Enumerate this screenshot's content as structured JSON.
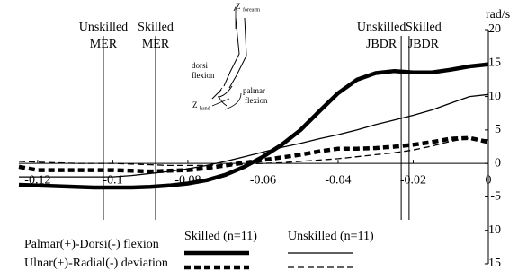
{
  "chart_data": {
    "type": "line",
    "y_unit_label": "rad/s",
    "x": [
      -0.125,
      -0.12,
      -0.115,
      -0.11,
      -0.105,
      -0.1,
      -0.095,
      -0.09,
      -0.085,
      -0.08,
      -0.075,
      -0.07,
      -0.065,
      -0.06,
      -0.055,
      -0.05,
      -0.045,
      -0.04,
      -0.035,
      -0.03,
      -0.025,
      -0.02,
      -0.015,
      -0.01,
      -0.005,
      0
    ],
    "xlim": [
      -0.125,
      0
    ],
    "xticks": [
      -0.12,
      -0.1,
      -0.08,
      -0.06,
      -0.04,
      -0.02,
      0
    ],
    "ylim": [
      -15,
      20
    ],
    "yticks": [
      -15,
      -10,
      -5,
      0,
      5,
      10,
      15,
      20
    ],
    "measures": [
      {
        "name": "Palmar(+)-Dorsi(-) flexion",
        "dash": "none"
      },
      {
        "name": "Ulnar(+)-Radial(-) deviation",
        "dash": "7 4"
      }
    ],
    "series": [
      {
        "name": "Skilled (n=11)",
        "color": "#000000",
        "stroke_width": 4.5,
        "values": [
          [
            -3.2,
            -3.3,
            -3.4,
            -3.5,
            -3.6,
            -3.6,
            -3.6,
            -3.5,
            -3.3,
            -3.0,
            -2.5,
            -1.7,
            -0.5,
            1.0,
            2.8,
            5.0,
            7.8,
            10.5,
            12.5,
            13.5,
            13.8,
            13.6,
            13.6,
            14.0,
            14.5,
            14.8
          ],
          [
            -0.5,
            -1.0,
            -1.0,
            -1.0,
            -1.0,
            -1.0,
            -1.1,
            -1.2,
            -1.1,
            -1.0,
            -0.7,
            -0.3,
            0.1,
            0.5,
            0.9,
            1.3,
            1.8,
            2.2,
            2.2,
            2.3,
            2.5,
            2.8,
            3.2,
            3.7,
            3.8,
            3.2
          ]
        ]
      },
      {
        "name": "Unskilled (n=11)",
        "color": "#000000",
        "stroke_width": 1.3,
        "values": [
          [
            -2.0,
            -2.0,
            -2.0,
            -2.0,
            -2.0,
            -2.0,
            -1.8,
            -1.5,
            -1.2,
            -0.8,
            -0.3,
            0.3,
            1.0,
            1.7,
            2.4,
            3.0,
            3.7,
            4.3,
            5.0,
            5.8,
            6.5,
            7.2,
            8.0,
            9.0,
            10.0,
            10.3
          ],
          [
            0.3,
            0.2,
            0.1,
            0.0,
            0.0,
            0.0,
            -0.1,
            -0.2,
            -0.3,
            -0.3,
            -0.3,
            -0.2,
            -0.1,
            0.0,
            0.1,
            0.3,
            0.5,
            0.7,
            1.0,
            1.3,
            1.6,
            2.0,
            2.6,
            3.3,
            3.8,
            3.5
          ]
        ]
      }
    ],
    "markers": [
      {
        "x": -0.1025,
        "label": [
          "Unskilled",
          "MER"
        ]
      },
      {
        "x": -0.0886,
        "label": [
          "Skilled",
          "MER"
        ]
      },
      {
        "x": -0.0232,
        "label": [
          "Unskilled",
          "JBDR"
        ]
      },
      {
        "x": -0.0211,
        "label": [
          "Skilled",
          "JBDR"
        ]
      }
    ],
    "inset": {
      "forearm_axis": "Z",
      "forearm_sub": "forearm",
      "dorsi": [
        "dorsi",
        "flexion"
      ],
      "palmar": [
        "palmar",
        "flexion"
      ],
      "hand_axis": "Z",
      "hand_sub": "hand"
    }
  }
}
